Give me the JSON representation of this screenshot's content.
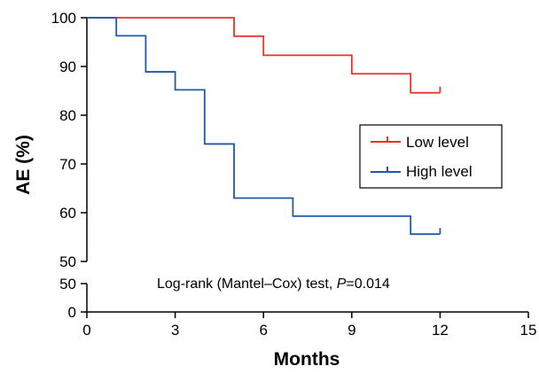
{
  "chart_data": {
    "type": "line",
    "xlabel": "Months",
    "ylabel": "AE (%)",
    "xlim": [
      0,
      15
    ],
    "ylim": [
      50,
      100
    ],
    "x_ticks": [
      0,
      3,
      6,
      9,
      12,
      15
    ],
    "y_ticks_upper": [
      50,
      60,
      70,
      80,
      90,
      100
    ],
    "y_ticks_lower": [
      0,
      50
    ],
    "axis_break": true,
    "step": true,
    "legend_placement": "right",
    "annotation": {
      "prefix": "Log-rank (Mantel–Cox) test, ",
      "p_symbol": "P",
      "p_value": "=0.014"
    },
    "series": [
      {
        "name": "Low level",
        "color": "#e8322b",
        "x": [
          0,
          5,
          6,
          9,
          11,
          12
        ],
        "y": [
          100,
          96.2,
          92.3,
          88.5,
          84.6,
          84.6
        ],
        "censored_at": [
          12
        ]
      },
      {
        "name": "High level",
        "color": "#1f5aa6",
        "x": [
          0,
          1,
          2,
          3,
          4,
          5,
          7,
          11,
          12
        ],
        "y": [
          100,
          96.3,
          88.9,
          85.2,
          74.1,
          63.0,
          59.3,
          55.6,
          55.6
        ],
        "censored_at": [
          12
        ]
      }
    ]
  }
}
